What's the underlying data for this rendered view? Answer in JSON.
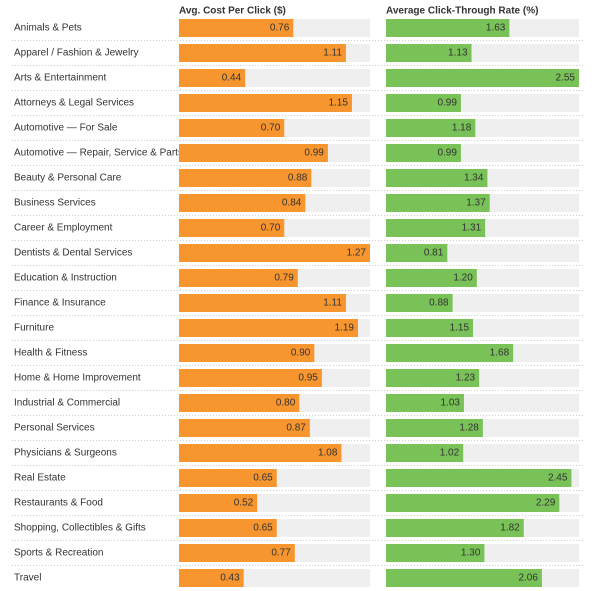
{
  "chart_data": {
    "type": "bar",
    "categories": [
      "Animals & Pets",
      "Apparel / Fashion & Jewelry",
      "Arts & Entertainment",
      "Attorneys & Legal Services",
      "Automotive — For Sale",
      "Automotive — Repair, Service & Parts",
      "Beauty & Personal Care",
      "Business Services",
      "Career & Employment",
      "Dentists & Dental Services",
      "Education & Instruction",
      "Finance & Insurance",
      "Furniture",
      "Health & Fitness",
      "Home & Home Improvement",
      "Industrial & Commercial",
      "Personal Services",
      "Physicians & Surgeons",
      "Real Estate",
      "Restaurants & Food",
      "Shopping, Collectibles & Gifts",
      "Sports & Recreation",
      "Travel"
    ],
    "series": [
      {
        "name": "Avg. Cost Per Click ($)",
        "color": "#f7962e",
        "values": [
          0.76,
          1.11,
          0.44,
          1.15,
          0.7,
          0.99,
          0.88,
          0.84,
          0.7,
          1.27,
          0.79,
          1.11,
          1.19,
          0.9,
          0.95,
          0.8,
          0.87,
          1.08,
          0.65,
          0.52,
          0.65,
          0.77,
          0.43
        ],
        "value_labels": [
          "0.76",
          "1.11",
          "0.44",
          "1.15",
          "0.70",
          "0.99",
          "0.88",
          "0.84",
          "0.70",
          "1.27",
          "0.79",
          "1.11",
          "1.19",
          "0.90",
          "0.95",
          "0.80",
          "0.87",
          "1.08",
          "0.65",
          "0.52",
          "0.65",
          "0.77",
          "0.43"
        ]
      },
      {
        "name": "Average Click-Through Rate (%)",
        "color": "#78c257",
        "values": [
          1.63,
          1.13,
          2.55,
          0.99,
          1.18,
          0.99,
          1.34,
          1.37,
          1.31,
          0.81,
          1.2,
          0.88,
          1.15,
          1.68,
          1.23,
          1.03,
          1.28,
          1.02,
          2.45,
          2.29,
          1.82,
          1.3,
          2.06
        ],
        "value_labels": [
          "1.63",
          "1.13",
          "2.55",
          "0.99",
          "1.18",
          "0.99",
          "1.34",
          "1.37",
          "1.31",
          "0.81",
          "1.20",
          "0.88",
          "1.15",
          "1.68",
          "1.23",
          "1.03",
          "1.28",
          "1.02",
          "2.45",
          "2.29",
          "1.82",
          "1.30",
          "2.06"
        ]
      }
    ]
  }
}
